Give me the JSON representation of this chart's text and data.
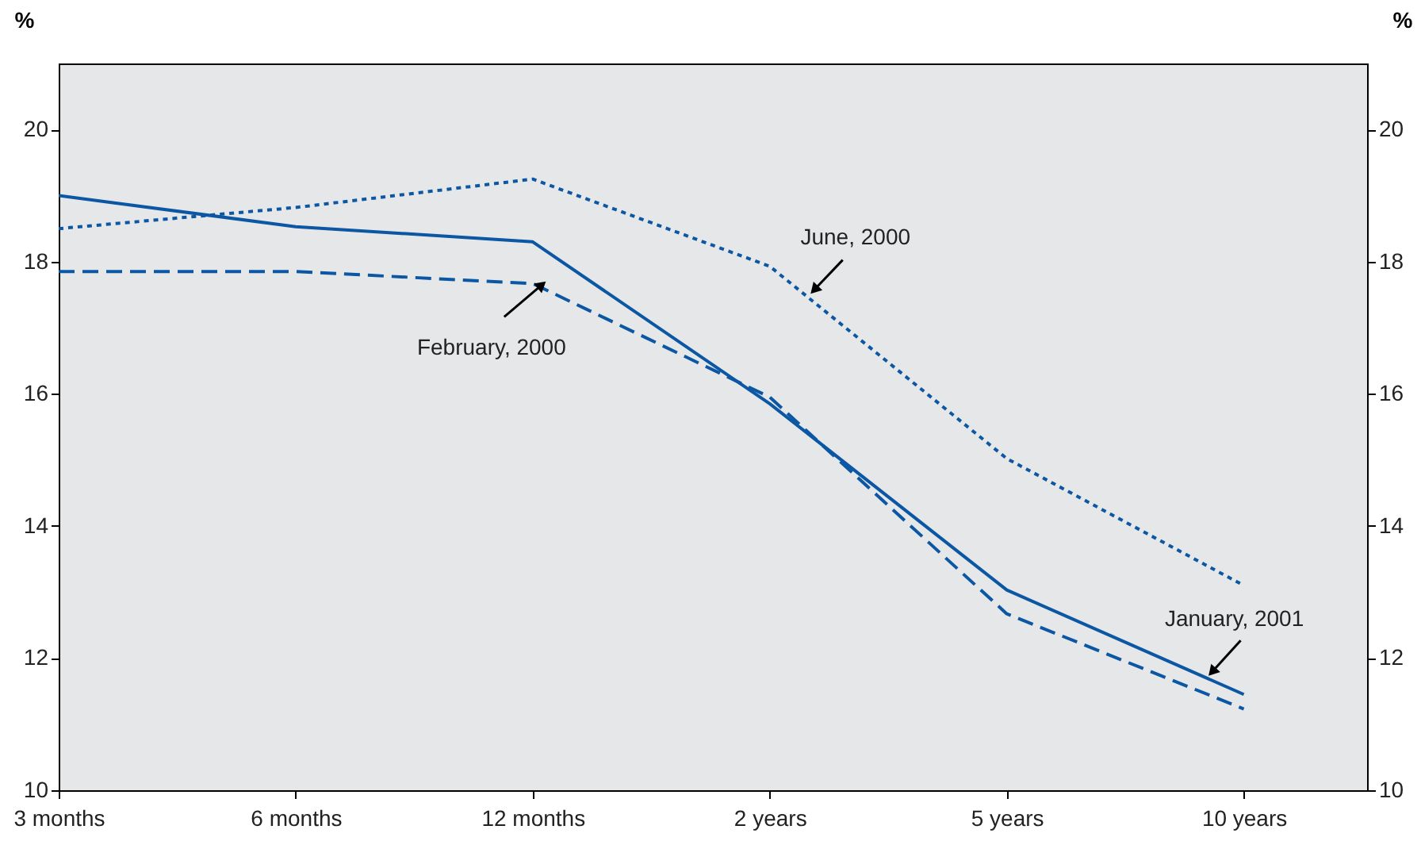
{
  "chart_data": {
    "type": "line",
    "ylabel": "%",
    "y2label": "%",
    "categories": [
      "3 months",
      "6 months",
      "12 months",
      "2 years",
      "5 years",
      "10 years"
    ],
    "series": [
      {
        "color": "#0b57a4",
        "line_style": "solid",
        "values": [
          19.0,
          18.53,
          18.3,
          15.85,
          13.03,
          11.45
        ]
      },
      {
        "color": "#0b57a4",
        "line_style": "dashed",
        "values": [
          17.85,
          17.85,
          17.67,
          15.95,
          12.67,
          11.23
        ]
      },
      {
        "color": "#0b57a4",
        "line_style": "dotted",
        "values": [
          18.5,
          18.82,
          19.25,
          17.93,
          15.02,
          13.1
        ]
      }
    ],
    "ylim": [
      10,
      21
    ],
    "yticks": [
      10,
      12,
      14,
      16,
      18,
      20
    ],
    "y2lim": [
      10,
      21
    ],
    "y2ticks": [
      10,
      12,
      14,
      16,
      18,
      20
    ],
    "grid": false,
    "annotations": [
      {
        "text": "February, 2000",
        "x": "12 months",
        "y": 17.67
      },
      {
        "text": "June, 2000",
        "x": "2 years",
        "y": 17.93
      },
      {
        "text": "January, 2001",
        "x": "10 years",
        "y": 11.45
      }
    ]
  }
}
